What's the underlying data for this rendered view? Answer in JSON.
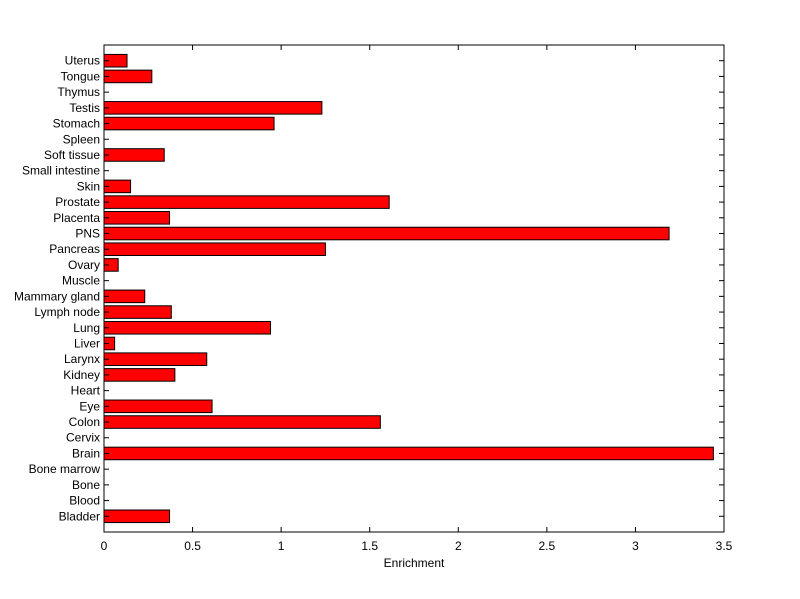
{
  "chart_data": {
    "type": "bar",
    "orientation": "horizontal",
    "title": "",
    "xlabel": "Enrichment",
    "ylabel": "",
    "xlim": [
      0,
      3.5
    ],
    "xticks": [
      0,
      0.5,
      1,
      1.5,
      2,
      2.5,
      3,
      3.5
    ],
    "xtick_labels": [
      "0",
      "0.5",
      "1",
      "1.5",
      "2",
      "2.5",
      "3",
      "3.5"
    ],
    "grid": false,
    "bar_color": "#ff0000",
    "bar_edge_color": "#000000",
    "categories": [
      "Bladder",
      "Blood",
      "Bone",
      "Bone marrow",
      "Brain",
      "Cervix",
      "Colon",
      "Eye",
      "Heart",
      "Kidney",
      "Larynx",
      "Liver",
      "Lung",
      "Lymph node",
      "Mammary gland",
      "Muscle",
      "Ovary",
      "Pancreas",
      "PNS",
      "Placenta",
      "Prostate",
      "Skin",
      "Small intestine",
      "Soft tissue",
      "Spleen",
      "Stomach",
      "Testis",
      "Thymus",
      "Tongue",
      "Uterus"
    ],
    "values": [
      0.37,
      0,
      0,
      0,
      3.44,
      0,
      1.56,
      0.61,
      0,
      0.4,
      0.58,
      0.06,
      0.94,
      0.38,
      0.23,
      0,
      0.08,
      1.25,
      3.19,
      0.37,
      1.61,
      0.15,
      0,
      0.34,
      0,
      0.96,
      1.23,
      0,
      0.27,
      0.13
    ]
  }
}
